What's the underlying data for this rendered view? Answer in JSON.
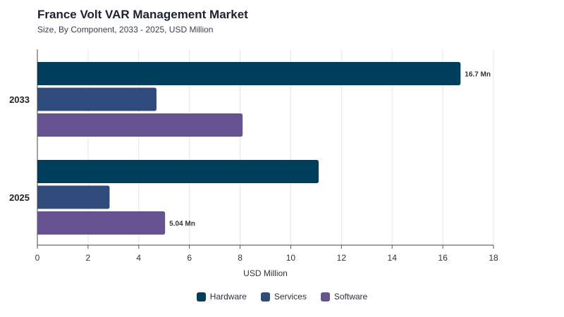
{
  "chart_data": {
    "type": "bar",
    "orientation": "horizontal",
    "title": "France Volt VAR Management Market",
    "subtitle": "Size, By Component, 2033 - 2025, USD Million",
    "xlabel": "USD Million",
    "ylabel": "",
    "categories": [
      "2033",
      "2025"
    ],
    "series": [
      {
        "name": "Hardware",
        "color": "#003f5c",
        "values": [
          16.7,
          11.1
        ]
      },
      {
        "name": "Services",
        "color": "#2f4b7c",
        "values": [
          4.7,
          2.85
        ]
      },
      {
        "name": "Software",
        "color": "#665191",
        "values": [
          8.1,
          5.04
        ]
      }
    ],
    "data_labels": [
      {
        "category": "2033",
        "series": "Hardware",
        "text": "16.7 Mn"
      },
      {
        "category": "2025",
        "series": "Software",
        "text": "5.04 Mn"
      }
    ],
    "xlim": [
      0,
      18
    ],
    "xticks": [
      0,
      2,
      4,
      6,
      8,
      10,
      12,
      14,
      16,
      18
    ],
    "grid": true,
    "legend": "bottom-center"
  }
}
